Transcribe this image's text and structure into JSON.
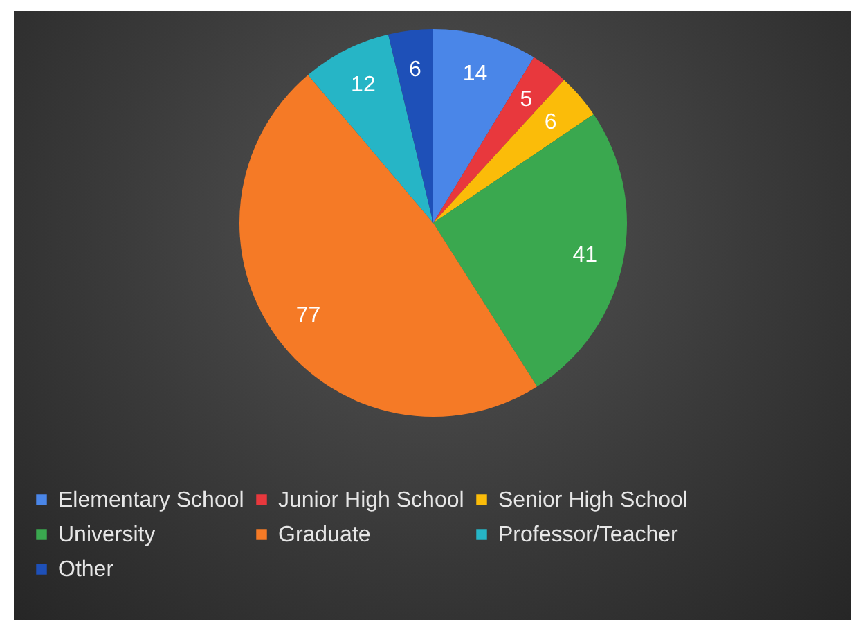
{
  "chart_data": {
    "type": "pie",
    "categories": [
      "Elementary School",
      "Junior High School",
      "Senior High School",
      "University",
      "Graduate",
      "Professor/Teacher",
      "Other"
    ],
    "values": [
      14,
      5,
      6,
      41,
      77,
      12,
      6
    ],
    "colors": [
      "#4a86e8",
      "#e8383d",
      "#fbbc09",
      "#3aa84f",
      "#f57a26",
      "#26b5c6",
      "#1e50b8"
    ],
    "data_labels": true,
    "legend": "bottom"
  }
}
